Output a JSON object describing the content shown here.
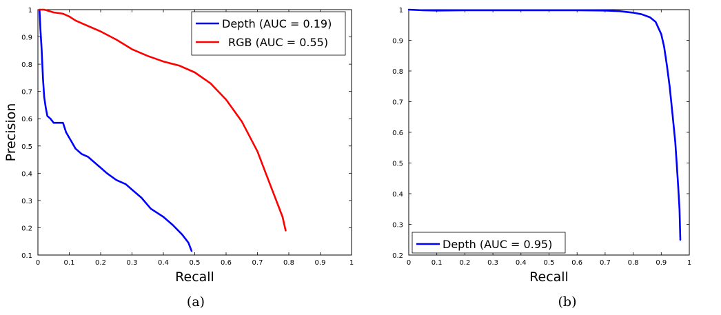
{
  "chart_data": [
    {
      "type": "line",
      "caption": "(a)",
      "xlabel": "Recall",
      "ylabel": "Precision",
      "xlim": [
        0,
        1
      ],
      "ylim": [
        0.1,
        1
      ],
      "xticks": [
        "0",
        "0.1",
        "0.2",
        "0.3",
        "0.4",
        "0.5",
        "0.6",
        "0.7",
        "0.8",
        "0.9",
        "1"
      ],
      "yticks": [
        "0.1",
        "0.2",
        "0.3",
        "0.4",
        "0.5",
        "0.6",
        "0.7",
        "0.8",
        "0.9",
        "1"
      ],
      "legend_position": "top-right",
      "grid": false,
      "series": [
        {
          "name": "Depth (AUC = 0.19)",
          "color": "#0000ff",
          "x": [
            0.005,
            0.008,
            0.012,
            0.016,
            0.02,
            0.025,
            0.03,
            0.04,
            0.05,
            0.06,
            0.07,
            0.08,
            0.09,
            0.1,
            0.12,
            0.14,
            0.16,
            0.18,
            0.2,
            0.22,
            0.25,
            0.28,
            0.3,
            0.33,
            0.36,
            0.4,
            0.43,
            0.46,
            0.48,
            0.49
          ],
          "y": [
            1.0,
            0.93,
            0.85,
            0.75,
            0.68,
            0.64,
            0.61,
            0.6,
            0.585,
            0.585,
            0.585,
            0.585,
            0.55,
            0.53,
            0.49,
            0.47,
            0.46,
            0.44,
            0.42,
            0.4,
            0.375,
            0.36,
            0.34,
            0.31,
            0.27,
            0.24,
            0.21,
            0.175,
            0.145,
            0.115
          ]
        },
        {
          "name": "RGB (AUC = 0.55)",
          "color": "#ff0000",
          "x": [
            0.005,
            0.02,
            0.05,
            0.08,
            0.1,
            0.12,
            0.15,
            0.2,
            0.25,
            0.3,
            0.35,
            0.4,
            0.45,
            0.5,
            0.55,
            0.6,
            0.65,
            0.7,
            0.73,
            0.76,
            0.78,
            0.79
          ],
          "y": [
            1.0,
            1.0,
            0.99,
            0.985,
            0.975,
            0.96,
            0.945,
            0.92,
            0.89,
            0.855,
            0.83,
            0.81,
            0.795,
            0.77,
            0.73,
            0.67,
            0.59,
            0.48,
            0.39,
            0.3,
            0.24,
            0.19
          ]
        }
      ]
    },
    {
      "type": "line",
      "caption": "(b)",
      "xlabel": "Recall",
      "ylabel": "",
      "xlim": [
        0,
        1
      ],
      "ylim": [
        0.2,
        1
      ],
      "xticks": [
        "0",
        "0.1",
        "0.2",
        "0.3",
        "0.4",
        "0.5",
        "0.6",
        "0.7",
        "0.8",
        "0.9",
        "1"
      ],
      "yticks": [
        "0.2",
        "0.3",
        "0.4",
        "0.5",
        "0.6",
        "0.7",
        "0.8",
        "0.9",
        "1"
      ],
      "legend_position": "bottom-left",
      "grid": false,
      "series": [
        {
          "name": "Depth (AUC = 0.95)",
          "color": "#0000ff",
          "x": [
            0.0,
            0.05,
            0.1,
            0.2,
            0.3,
            0.4,
            0.5,
            0.6,
            0.7,
            0.75,
            0.8,
            0.83,
            0.86,
            0.88,
            0.9,
            0.91,
            0.92,
            0.93,
            0.94,
            0.95,
            0.955,
            0.96,
            0.965,
            0.968
          ],
          "y": [
            1.0,
            0.998,
            0.997,
            0.998,
            0.998,
            0.998,
            0.998,
            0.998,
            0.997,
            0.995,
            0.99,
            0.985,
            0.975,
            0.96,
            0.92,
            0.88,
            0.82,
            0.75,
            0.66,
            0.57,
            0.5,
            0.43,
            0.35,
            0.25
          ]
        }
      ]
    }
  ]
}
